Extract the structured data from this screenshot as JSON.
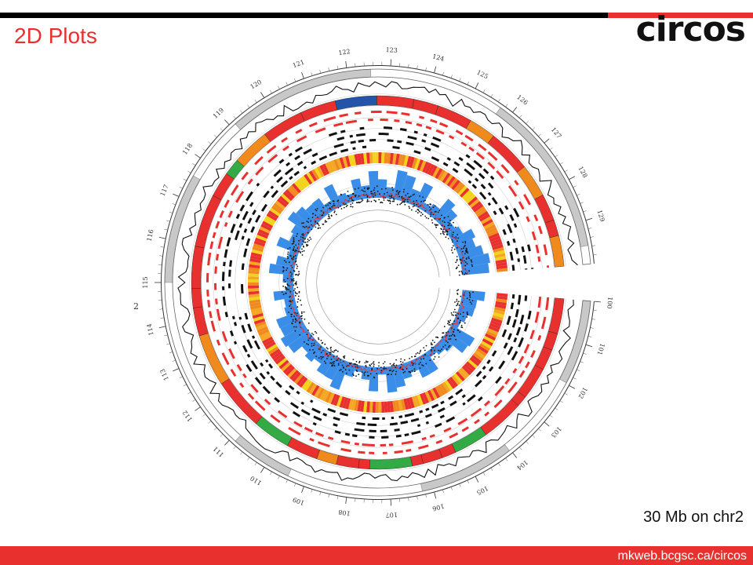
{
  "header": {
    "title": "2D Plots",
    "logo": "circos",
    "accent_color": "#e8312f",
    "dark_color": "#000000"
  },
  "caption": "30 Mb on chr2",
  "footer": {
    "url": "mkweb.bcgsc.ca/circos"
  },
  "plot": {
    "chromosome_label": "2",
    "start_mb": 100,
    "end_mb": 130,
    "tick_labels": [
      "100",
      "101",
      "102",
      "103",
      "104",
      "105",
      "106",
      "107",
      "108",
      "109",
      "110",
      "111",
      "112",
      "113",
      "114",
      "115",
      "116",
      "117",
      "118",
      "119",
      "120",
      "121",
      "122",
      "123",
      "124",
      "125",
      "126",
      "127",
      "128",
      "129"
    ],
    "colors": {
      "heatmap": [
        "#e8312f",
        "#f08a1c",
        "#f2d21a",
        "#f5a623",
        "#e8312f"
      ],
      "ideogram_bands": [
        "#e8312f",
        "#f08a1c",
        "#33aa44",
        "#2255aa",
        "#f7f21e"
      ],
      "scatter_fill": "#3b8ee8",
      "gray_band": "#c8c8c8"
    }
  }
}
